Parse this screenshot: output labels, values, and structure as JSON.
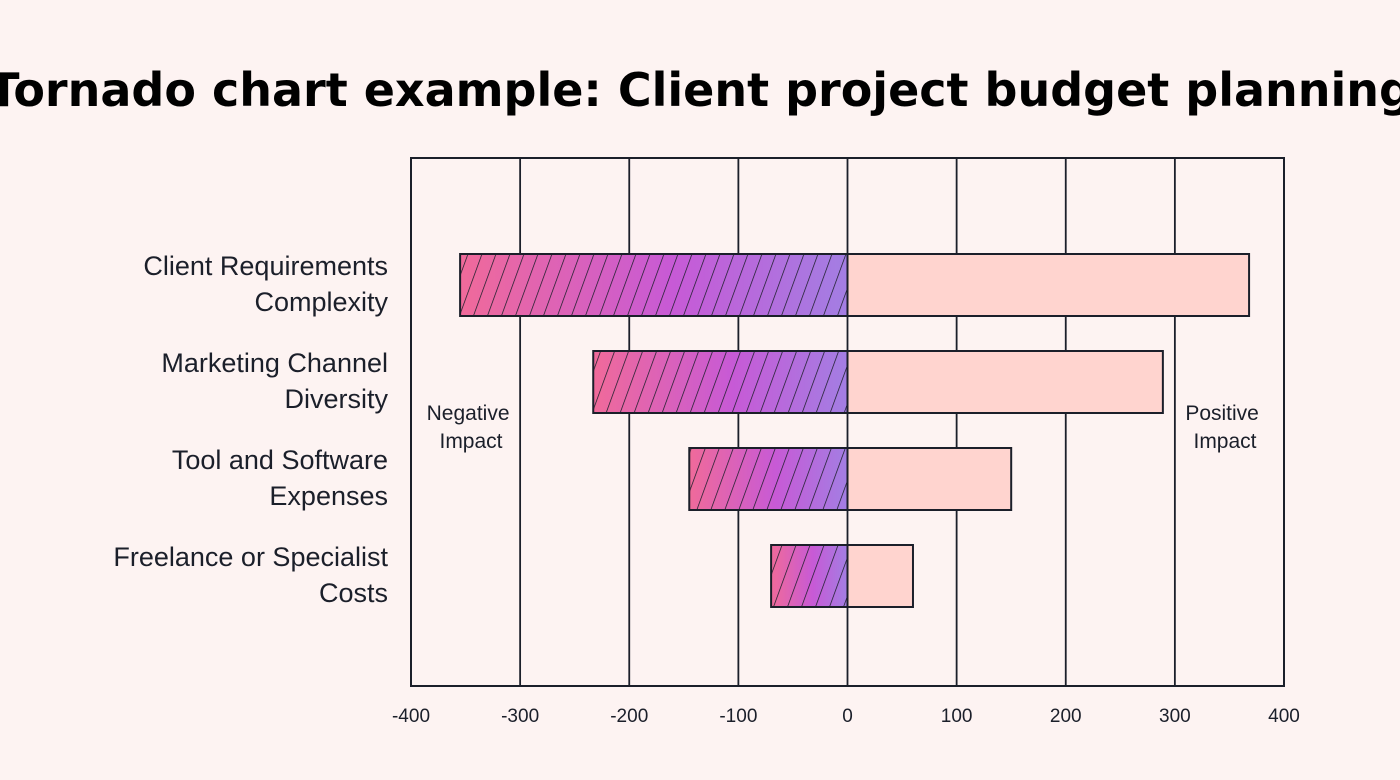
{
  "chart_data": {
    "type": "bar",
    "orientation": "horizontal-tornado",
    "title": "Tornado chart example: Client project budget planning",
    "categories": [
      [
        "Client Requirements",
        "Complexity"
      ],
      [
        "Marketing Channel",
        "Diversity"
      ],
      [
        "Tool and Software",
        "Expenses"
      ],
      [
        "Freelance or Specialist",
        "Costs"
      ]
    ],
    "series": [
      {
        "name": "Negative Impact",
        "values": [
          -355,
          -233,
          -145,
          -70
        ]
      },
      {
        "name": "Positive Impact",
        "values": [
          368,
          289,
          150,
          60
        ]
      }
    ],
    "xlim": [
      -400,
      400
    ],
    "xticks": [
      -400,
      -300,
      -200,
      -100,
      0,
      100,
      200,
      300,
      400
    ],
    "xlabel": "",
    "ylabel": "",
    "grid": true,
    "legend": "inline-left-and-right",
    "colors": {
      "negative_start": "#f06a9a",
      "negative_mid": "#c75ad6",
      "negative_end": "#a37ee3",
      "positive_fill": "#ffd4cf",
      "stroke": "#1b1f2a",
      "background": "#fdf3f2"
    }
  }
}
